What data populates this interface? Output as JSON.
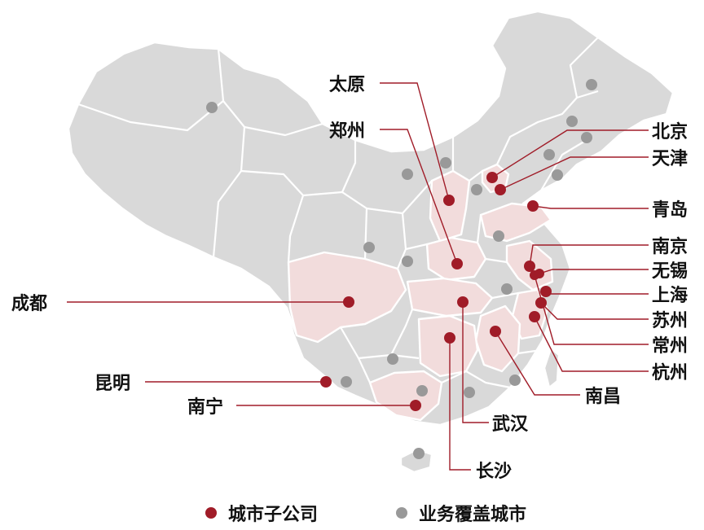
{
  "colors": {
    "subsidiary": "#a01c28",
    "coverage": "#999999",
    "base_land": "#d9d9d9",
    "highlight_land": "#f2dcdc"
  },
  "cities": {
    "taiyuan": "太原",
    "zhengzhou": "郑州",
    "beijing": "北京",
    "tianjin": "天津",
    "qingdao": "青岛",
    "nanjing": "南京",
    "wuxi": "无锡",
    "shanghai": "上海",
    "suzhou": "苏州",
    "changzhou": "常州",
    "hangzhou": "杭州",
    "nanchang": "南昌",
    "wuhan": "武汉",
    "changsha": "长沙",
    "nanning": "南宁",
    "kunming": "昆明",
    "chengdu": "成都"
  },
  "legend": {
    "subsidiary_label": "城市子公司",
    "coverage_label": "业务覆盖城市"
  }
}
